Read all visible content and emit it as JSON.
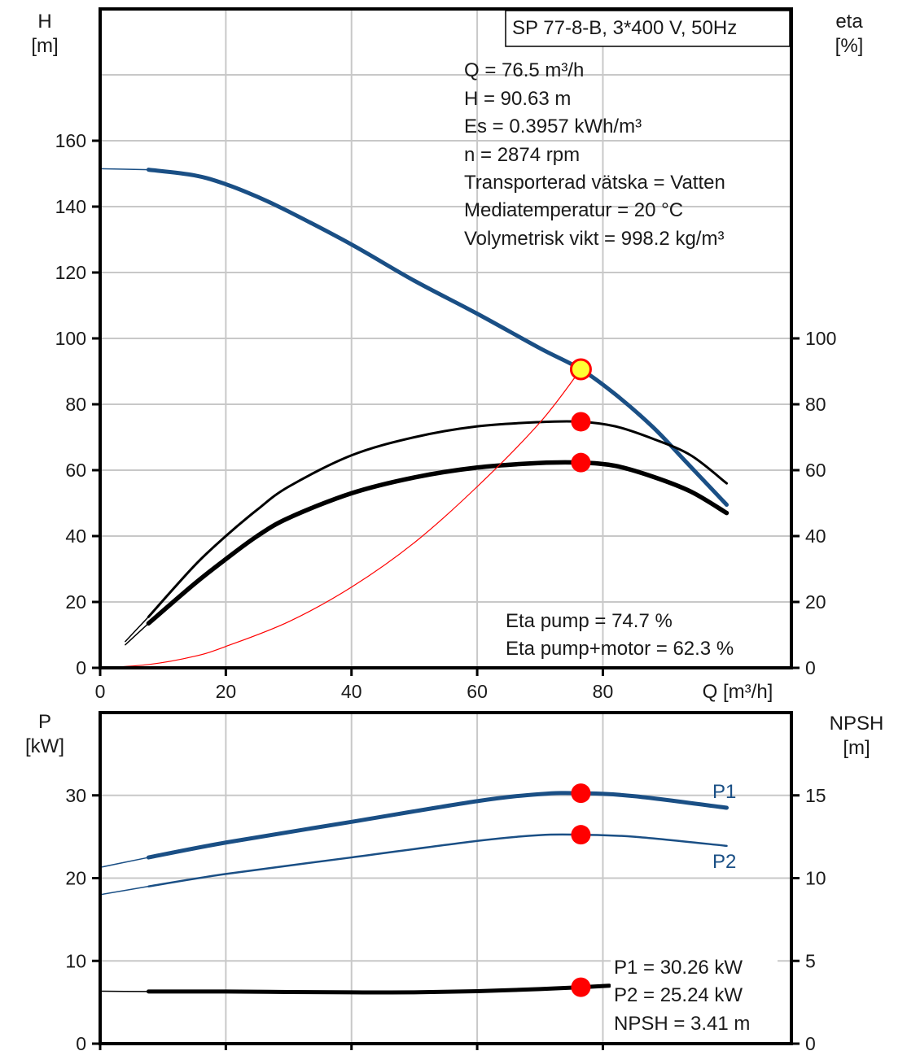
{
  "title_box": "SP 77-8-B, 3*400 V, 50Hz",
  "operating_point": [
    "Q = 76.5 m³/h",
    "H = 90.63 m",
    "Es = 0.3957 kWh/m³",
    "n = 2874 rpm",
    "Transporterad vätska = Vatten",
    "Mediatemperatur = 20 °C",
    "Volymetrisk vikt = 998.2 kg/m³"
  ],
  "efficiency_info": [
    "Eta pump = 74.7 %",
    "Eta pump+motor = 62.3 %"
  ],
  "power_info": [
    "P1 = 30.26 kW",
    "P2 = 25.24 kW",
    "NPSH = 3.41 m"
  ],
  "colors": {
    "head": "#1a4f85",
    "eta": "#000000",
    "system": "#ff0000",
    "marker": "#ff0000",
    "duty": "#ffff33",
    "grid": "#c8c8c8"
  },
  "chart_data": [
    {
      "type": "line",
      "name": "head-efficiency",
      "xlabel": "Q [m³/h]",
      "ylabel_left": [
        "H",
        "[m]"
      ],
      "ylabel_right": [
        "eta",
        "[%]"
      ],
      "xlim": [
        0,
        110
      ],
      "ylim_left": [
        0,
        200
      ],
      "ylim_right": [
        0,
        200
      ],
      "x_ticks": [
        0,
        20,
        40,
        60,
        80
      ],
      "y_ticks_left": [
        0,
        20,
        40,
        60,
        80,
        100,
        120,
        140,
        160
      ],
      "y_ticks_right": [
        0,
        20,
        40,
        60,
        80,
        100
      ],
      "series": [
        {
          "name": "H",
          "axis": "left",
          "color": "#1a4f85",
          "width": 5,
          "x": [
            7.7,
            15,
            20,
            25,
            30,
            40,
            50,
            60,
            70,
            76.5,
            82,
            88,
            93,
            99.7
          ],
          "y": [
            151.2,
            149.5,
            146.8,
            143,
            138.5,
            128.5,
            117.5,
            107.5,
            97,
            90.63,
            83,
            73,
            63,
            49.5
          ]
        },
        {
          "name": "H extension",
          "axis": "left",
          "color": "#1a4f85",
          "width": 1.5,
          "x": [
            0,
            7.7
          ],
          "y": [
            151.5,
            151.2
          ]
        },
        {
          "name": "Eta pump",
          "axis": "right",
          "color": "#000000",
          "width": 3,
          "x": [
            7.7,
            15,
            20,
            25,
            30,
            40,
            50,
            60,
            70,
            76.5,
            82,
            88,
            94,
            99.7
          ],
          "y": [
            15.5,
            31,
            40,
            48,
            55,
            64.5,
            70,
            73.3,
            74.6,
            74.7,
            73.3,
            69.5,
            64.5,
            56
          ]
        },
        {
          "name": "Eta pump extension",
          "axis": "right",
          "color": "#000000",
          "width": 1.5,
          "x": [
            4,
            7.7
          ],
          "y": [
            8,
            15.5
          ]
        },
        {
          "name": "Eta pump+motor",
          "axis": "right",
          "color": "#000000",
          "width": 5.5,
          "x": [
            7.7,
            15,
            20,
            25,
            30,
            40,
            50,
            60,
            70,
            76.5,
            82,
            88,
            94,
            99.7
          ],
          "y": [
            13.5,
            25.5,
            33,
            40,
            45.5,
            53,
            57.8,
            60.8,
            62.2,
            62.3,
            61.3,
            58,
            53.5,
            47
          ]
        },
        {
          "name": "Eta pump+motor extension",
          "axis": "right",
          "color": "#000000",
          "width": 1.5,
          "x": [
            4,
            7.7
          ],
          "y": [
            7,
            13.5
          ]
        },
        {
          "name": "System curve",
          "axis": "left",
          "color": "#ff0000",
          "width": 1.2,
          "x": [
            0,
            7.7,
            15,
            20,
            30,
            40,
            50,
            60,
            70,
            76.5
          ],
          "y": [
            0,
            1,
            3.5,
            6.5,
            14,
            24.5,
            38,
            55,
            74.5,
            90.63
          ]
        }
      ],
      "markers": [
        {
          "name": "Duty point H",
          "axis": "left",
          "x": 76.5,
          "y": 90.63,
          "style": "duty"
        },
        {
          "name": "Eta pump point",
          "axis": "right",
          "x": 76.5,
          "y": 74.7,
          "style": "dot"
        },
        {
          "name": "Eta pump+motor point",
          "axis": "right",
          "x": 76.5,
          "y": 62.3,
          "style": "dot"
        }
      ]
    },
    {
      "type": "line",
      "name": "power-npsh",
      "xlabel": "",
      "ylabel_left": [
        "P",
        "[kW]"
      ],
      "ylabel_right": [
        "NPSH",
        "[m]"
      ],
      "xlim": [
        0,
        110
      ],
      "ylim_left": [
        0,
        40
      ],
      "ylim_right": [
        0,
        20
      ],
      "y_ticks_left": [
        0,
        10,
        20,
        30
      ],
      "y_ticks_right": [
        0,
        5,
        10,
        15
      ],
      "series": [
        {
          "name": "P1",
          "axis": "left",
          "color": "#1a4f85",
          "width": 5,
          "x": [
            7.7,
            20,
            40,
            60,
            70,
            76.5,
            85,
            99.7
          ],
          "y": [
            22.5,
            24.3,
            26.8,
            29.3,
            30.15,
            30.26,
            29.9,
            28.5
          ]
        },
        {
          "name": "P1 extension",
          "axis": "left",
          "color": "#1a4f85",
          "width": 1.5,
          "x": [
            0,
            7.7
          ],
          "y": [
            21.3,
            22.5
          ]
        },
        {
          "name": "P2",
          "axis": "left",
          "color": "#1a4f85",
          "width": 2.5,
          "x": [
            7.7,
            20,
            40,
            60,
            70,
            76.5,
            85,
            99.7
          ],
          "y": [
            19,
            20.5,
            22.5,
            24.5,
            25.2,
            25.24,
            25,
            23.9
          ]
        },
        {
          "name": "P2 extension",
          "axis": "left",
          "color": "#1a4f85",
          "width": 1.5,
          "x": [
            0,
            7.7
          ],
          "y": [
            18,
            19
          ]
        },
        {
          "name": "NPSH",
          "axis": "right",
          "color": "#000000",
          "width": 5,
          "x": [
            7.7,
            20,
            30,
            40,
            50,
            60,
            70,
            76.5,
            81
          ],
          "y": [
            3.15,
            3.15,
            3.12,
            3.1,
            3.1,
            3.17,
            3.3,
            3.41,
            3.5
          ]
        },
        {
          "name": "NPSH extension",
          "axis": "right",
          "color": "#000000",
          "width": 1.5,
          "x": [
            0,
            7.7
          ],
          "y": [
            3.17,
            3.15
          ]
        }
      ],
      "markers": [
        {
          "name": "P1 point",
          "axis": "left",
          "x": 76.5,
          "y": 30.26,
          "style": "dot"
        },
        {
          "name": "P2 point",
          "axis": "left",
          "x": 76.5,
          "y": 25.24,
          "style": "dot"
        },
        {
          "name": "NPSH point",
          "axis": "right",
          "x": 76.5,
          "y": 3.41,
          "style": "dot"
        }
      ],
      "curve_labels": [
        "P1",
        "P2"
      ]
    }
  ]
}
